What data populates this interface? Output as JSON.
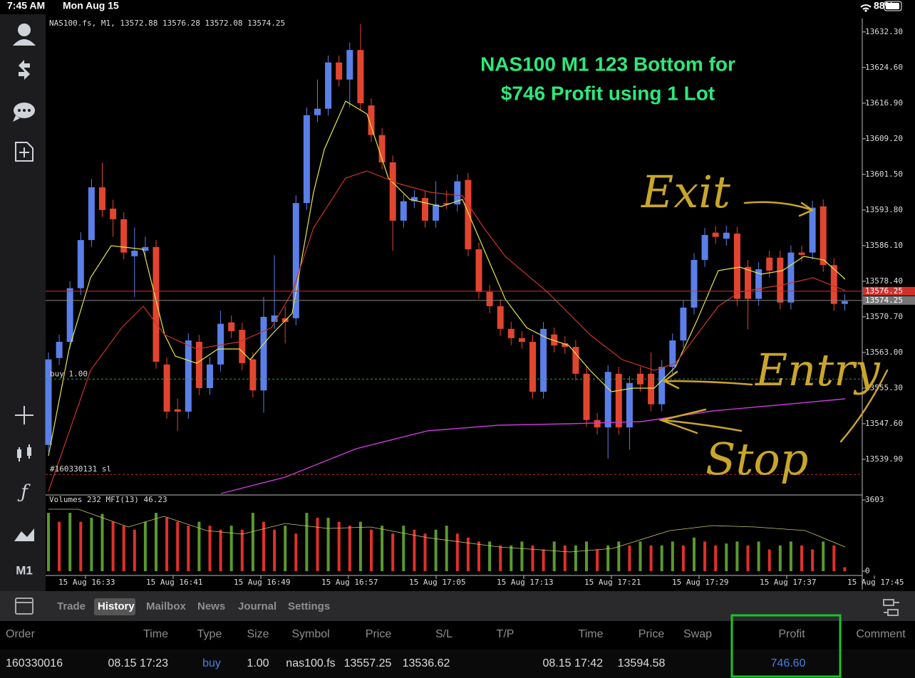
{
  "status_bar": {
    "time": "7:45 AM",
    "date": "Mon Aug 15",
    "battery": "88%"
  },
  "chart": {
    "type": "candlestick",
    "header": "NAS100.fs, M1, 13572.88 13576.28 13572.08 13574.25",
    "title_lines": [
      "NAS100 M1 123 Bottom for",
      "$746 Profit using 1 Lot"
    ],
    "annotations": [
      "Exit",
      "Entry",
      "Stop"
    ],
    "ylim": [
      13532.5,
      13635.2
    ],
    "yticks": [
      {
        "value": 13632.3,
        "label": "13632.30"
      },
      {
        "value": 13624.6,
        "label": "13624.60"
      },
      {
        "value": 13616.9,
        "label": "13616.90"
      },
      {
        "value": 13609.2,
        "label": "13609.20"
      },
      {
        "value": 13601.5,
        "label": "13601.50"
      },
      {
        "value": 13593.8,
        "label": "13593.80"
      },
      {
        "value": 13586.1,
        "label": "13586.10"
      },
      {
        "value": 13578.4,
        "label": "13578.40"
      },
      {
        "value": 13570.7,
        "label": "13570.70"
      },
      {
        "value": 13563,
        "label": "13563.00"
      },
      {
        "value": 13555.3,
        "label": "13555.30"
      },
      {
        "value": 13547.6,
        "label": "13547.60"
      },
      {
        "value": 13539.9,
        "label": "13539.90"
      }
    ],
    "ask": 13576.25,
    "bid": 13574.25,
    "order_label": "buy 1.00",
    "sl_label": "#160330131 sl",
    "x_labels": [
      "15 Aug 16:33",
      "15 Aug 16:41",
      "15 Aug 16:49",
      "15 Aug 16:57",
      "15 Aug 17:05",
      "15 Aug 17:13",
      "15 Aug 17:21",
      "15 Aug 17:29",
      "15 Aug 17:37",
      "15 Aug 17:45"
    ],
    "up_color": "#5b7fe8",
    "down_color": "#e2452f",
    "candles": [
      [
        13543.0,
        13563.0,
        13541.5,
        13561.5
      ],
      [
        13561.8,
        13566.8,
        13560.3,
        13565.3
      ],
      [
        13565.3,
        13578.4,
        13563.8,
        13576.9
      ],
      [
        13576.9,
        13589.0,
        13575.4,
        13587.3
      ],
      [
        13587.3,
        13600.5,
        13585.8,
        13598.7
      ],
      [
        13598.7,
        13604.0,
        13592.3,
        13593.8
      ],
      [
        13594.1,
        13596.0,
        13588.0,
        13591.8
      ],
      [
        13591.8,
        13593.3,
        13583.1,
        13584.6
      ],
      [
        13583.8,
        13590.0,
        13575.0,
        13585.0
      ],
      [
        13585.0,
        13588.0,
        13583.5,
        13585.8
      ],
      [
        13585.8,
        13587.3,
        13559.5,
        13561.0
      ],
      [
        13560.4,
        13561.9,
        13548.7,
        13550.2
      ],
      [
        13550.7,
        13553.0,
        13546.0,
        13550.2
      ],
      [
        13550.2,
        13567.1,
        13548.7,
        13565.6
      ],
      [
        13565.3,
        13566.8,
        13553.8,
        13555.3
      ],
      [
        13555.3,
        13562.0,
        13553.8,
        13560.4
      ],
      [
        13560.4,
        13572.0,
        13558.9,
        13569.2
      ],
      [
        13569.5,
        13571.0,
        13566.1,
        13567.6
      ],
      [
        13567.9,
        13569.4,
        13559.2,
        13560.7
      ],
      [
        13561.5,
        13563.0,
        13553.3,
        13554.8
      ],
      [
        13554.8,
        13575.0,
        13550.0,
        13570.7
      ],
      [
        13569.6,
        13584.0,
        13568.1,
        13571.0
      ],
      [
        13570.4,
        13573.0,
        13565.0,
        13569.6
      ],
      [
        13570.4,
        13597.0,
        13568.9,
        13595.3
      ],
      [
        13595.3,
        13616.0,
        13593.8,
        13614.3
      ],
      [
        13614.3,
        13622.0,
        13612.8,
        13615.7
      ],
      [
        13615.7,
        13627.2,
        13614.2,
        13625.7
      ],
      [
        13625.7,
        13627.2,
        13620.5,
        13622.0
      ],
      [
        13622.0,
        13630.0,
        13616.0,
        13628.4
      ],
      [
        13628.4,
        13634.0,
        13615.4,
        13616.9
      ],
      [
        13616.4,
        13617.9,
        13608.5,
        13610.0
      ],
      [
        13610.0,
        13611.5,
        13602.6,
        13604.1
      ],
      [
        13604.1,
        13605.6,
        13585.0,
        13591.5
      ],
      [
        13591.5,
        13597.2,
        13590.0,
        13595.7
      ],
      [
        13595.7,
        13598.1,
        13594.2,
        13596.6
      ],
      [
        13596.4,
        13597.9,
        13590.0,
        13591.5
      ],
      [
        13591.5,
        13600.0,
        13590.0,
        13595.0
      ],
      [
        13595.3,
        13598.0,
        13594.0,
        13595.0
      ],
      [
        13595.0,
        13601.5,
        13593.5,
        13600.0
      ],
      [
        13600.3,
        13601.8,
        13583.8,
        13585.3
      ],
      [
        13585.3,
        13586.8,
        13574.6,
        13576.1
      ],
      [
        13576.1,
        13577.6,
        13571.5,
        13573.0
      ],
      [
        13573.0,
        13574.5,
        13566.6,
        13568.1
      ],
      [
        13568.1,
        13569.6,
        13564.6,
        13566.1
      ],
      [
        13566.1,
        13567.6,
        13563.8,
        13565.3
      ],
      [
        13565.3,
        13566.8,
        13553.0,
        13554.5
      ],
      [
        13554.5,
        13569.6,
        13553.0,
        13568.1
      ],
      [
        13566.9,
        13568.4,
        13563.0,
        13564.5
      ],
      [
        13565.0,
        13566.5,
        13562.7,
        13564.2
      ],
      [
        13564.2,
        13565.7,
        13556.9,
        13558.4
      ],
      [
        13558.4,
        13559.9,
        13546.9,
        13548.4
      ],
      [
        13548.4,
        13549.9,
        13545.3,
        13546.8
      ],
      [
        13546.8,
        13560.3,
        13540.0,
        13558.8
      ],
      [
        13558.4,
        13559.9,
        13545.3,
        13546.8
      ],
      [
        13546.8,
        13557.9,
        13542.0,
        13556.4
      ],
      [
        13558.4,
        13559.9,
        13554.6,
        13556.1
      ],
      [
        13558.4,
        13563.0,
        13550.3,
        13551.8
      ],
      [
        13551.8,
        13561.4,
        13550.3,
        13559.9
      ],
      [
        13559.9,
        13567.1,
        13558.4,
        13565.6
      ],
      [
        13565.6,
        13574.2,
        13564.1,
        13572.7
      ],
      [
        13572.7,
        13584.5,
        13571.2,
        13583.0
      ],
      [
        13583.0,
        13589.9,
        13581.5,
        13588.4
      ],
      [
        13588.9,
        13590.4,
        13586.5,
        13588.0
      ],
      [
        13587.6,
        13590.4,
        13586.1,
        13588.9
      ],
      [
        13588.7,
        13590.2,
        13573.1,
        13574.6
      ],
      [
        13581.5,
        13583.0,
        13568.0,
        13574.6
      ],
      [
        13574.6,
        13582.5,
        13573.1,
        13581.0
      ],
      [
        13583.5,
        13585.0,
        13579.2,
        13580.7
      ],
      [
        13583.5,
        13585.0,
        13572.3,
        13573.8
      ],
      [
        13573.8,
        13586.1,
        13572.3,
        13584.6
      ],
      [
        13584.6,
        13586.1,
        13582.6,
        13584.1
      ],
      [
        13584.6,
        13595.8,
        13583.1,
        13594.3
      ],
      [
        13594.6,
        13596.1,
        13580.4,
        13581.9
      ],
      [
        13581.9,
        13583.4,
        13572.0,
        13573.5
      ],
      [
        13573.5,
        13575.6,
        13572.0,
        13574.1
      ]
    ],
    "volume_header": "Volumes 232 MFI(13) 46.23",
    "vlim": [
      0,
      3603
    ],
    "vticks": [
      0,
      3603
    ],
    "vol_up_color": "#5a9a2c",
    "vol_down_color": "#e0302a",
    "volumes": [
      2950,
      2500,
      2950,
      2500,
      2700,
      2900,
      2500,
      2300,
      2100,
      2500,
      2950,
      2700,
      2500,
      2300,
      2500,
      2300,
      2100,
      2300,
      2100,
      2950,
      2500,
      2100,
      2300,
      1900,
      2950,
      2700,
      2700,
      2500,
      2300,
      2500,
      2100,
      2300,
      1900,
      2300,
      2100,
      1900,
      2100,
      2300,
      1900,
      1700,
      1500,
      1500,
      1300,
      1300,
      1500,
      1300,
      1100,
      1500,
      1300,
      1300,
      1500,
      1100,
      1300,
      1500,
      1300,
      1500,
      1300,
      1300,
      1500,
      1300,
      1700,
      1500,
      1300,
      1400,
      1500,
      1300,
      1500,
      1100,
      1300,
      1500,
      1300,
      1100,
      1500,
      1300,
      200
    ]
  },
  "sidebar": {
    "timeframe": "M1"
  },
  "tabs": [
    "Trade",
    "History",
    "Mailbox",
    "News",
    "Journal",
    "Settings"
  ],
  "active_tab": 1,
  "table": {
    "columns": [
      "Order",
      "Time",
      "Type",
      "Size",
      "Symbol",
      "Price",
      "S/L",
      "T/P",
      "Time",
      "Price",
      "Swap",
      "Profit",
      "Comment"
    ],
    "rows": [
      {
        "order": "160330016",
        "open_time": "08.15 17:23",
        "type": "buy",
        "size": {
          "value": 1,
          "label": "1.00"
        },
        "symbol": "nas100.fs",
        "price": 13557.25,
        "sl": 13536.62,
        "close_time": "08.15 17:42",
        "close_price": 13594.58,
        "profit": {
          "value": 746.6,
          "label": "746.60"
        }
      }
    ]
  }
}
